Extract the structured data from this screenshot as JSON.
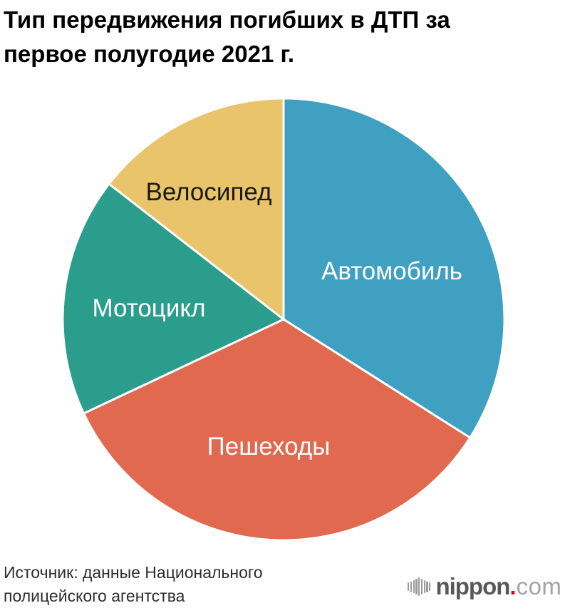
{
  "title": {
    "line1": "Тип передвижения погибших в ДТП за",
    "line2": "первое полугодие 2021 г."
  },
  "source": {
    "line1": "Источник: данные Национального",
    "line2": "полицейского агентства"
  },
  "logo": {
    "icon": "soundwave-icon",
    "name": "nippon",
    "dot": ".",
    "tld": "com",
    "name_color": "#595757",
    "dot_color": "#e60012",
    "tld_color": "#a2a3a3"
  },
  "chart_data": {
    "type": "pie",
    "title": "Тип передвижения погибших в ДТП за первое полугодие 2021 г.",
    "start_angle_deg": 0,
    "direction": "clockwise",
    "legend": "labels-inside-slices",
    "separator_color": "#ffffff",
    "slices": [
      {
        "id": "automobile",
        "label": "Автомобиль",
        "value_pct": 34.0,
        "color": "#3FA0C1",
        "label_color": "#ffffff"
      },
      {
        "id": "pedestrians",
        "label": "Пешеходы",
        "value_pct": 34.0,
        "color": "#E0694F",
        "label_color": "#ffffff"
      },
      {
        "id": "motorcycle",
        "label": "Мотоцикл",
        "value_pct": 17.5,
        "color": "#2A9D8C",
        "label_color": "#ffffff"
      },
      {
        "id": "bicycle",
        "label": "Велосипед",
        "value_pct": 14.5,
        "color": "#E9C46A",
        "label_color": "#1a1a1a"
      }
    ]
  },
  "logo_bar_heights": [
    12,
    15,
    18,
    22,
    26,
    22,
    18,
    15,
    12
  ]
}
